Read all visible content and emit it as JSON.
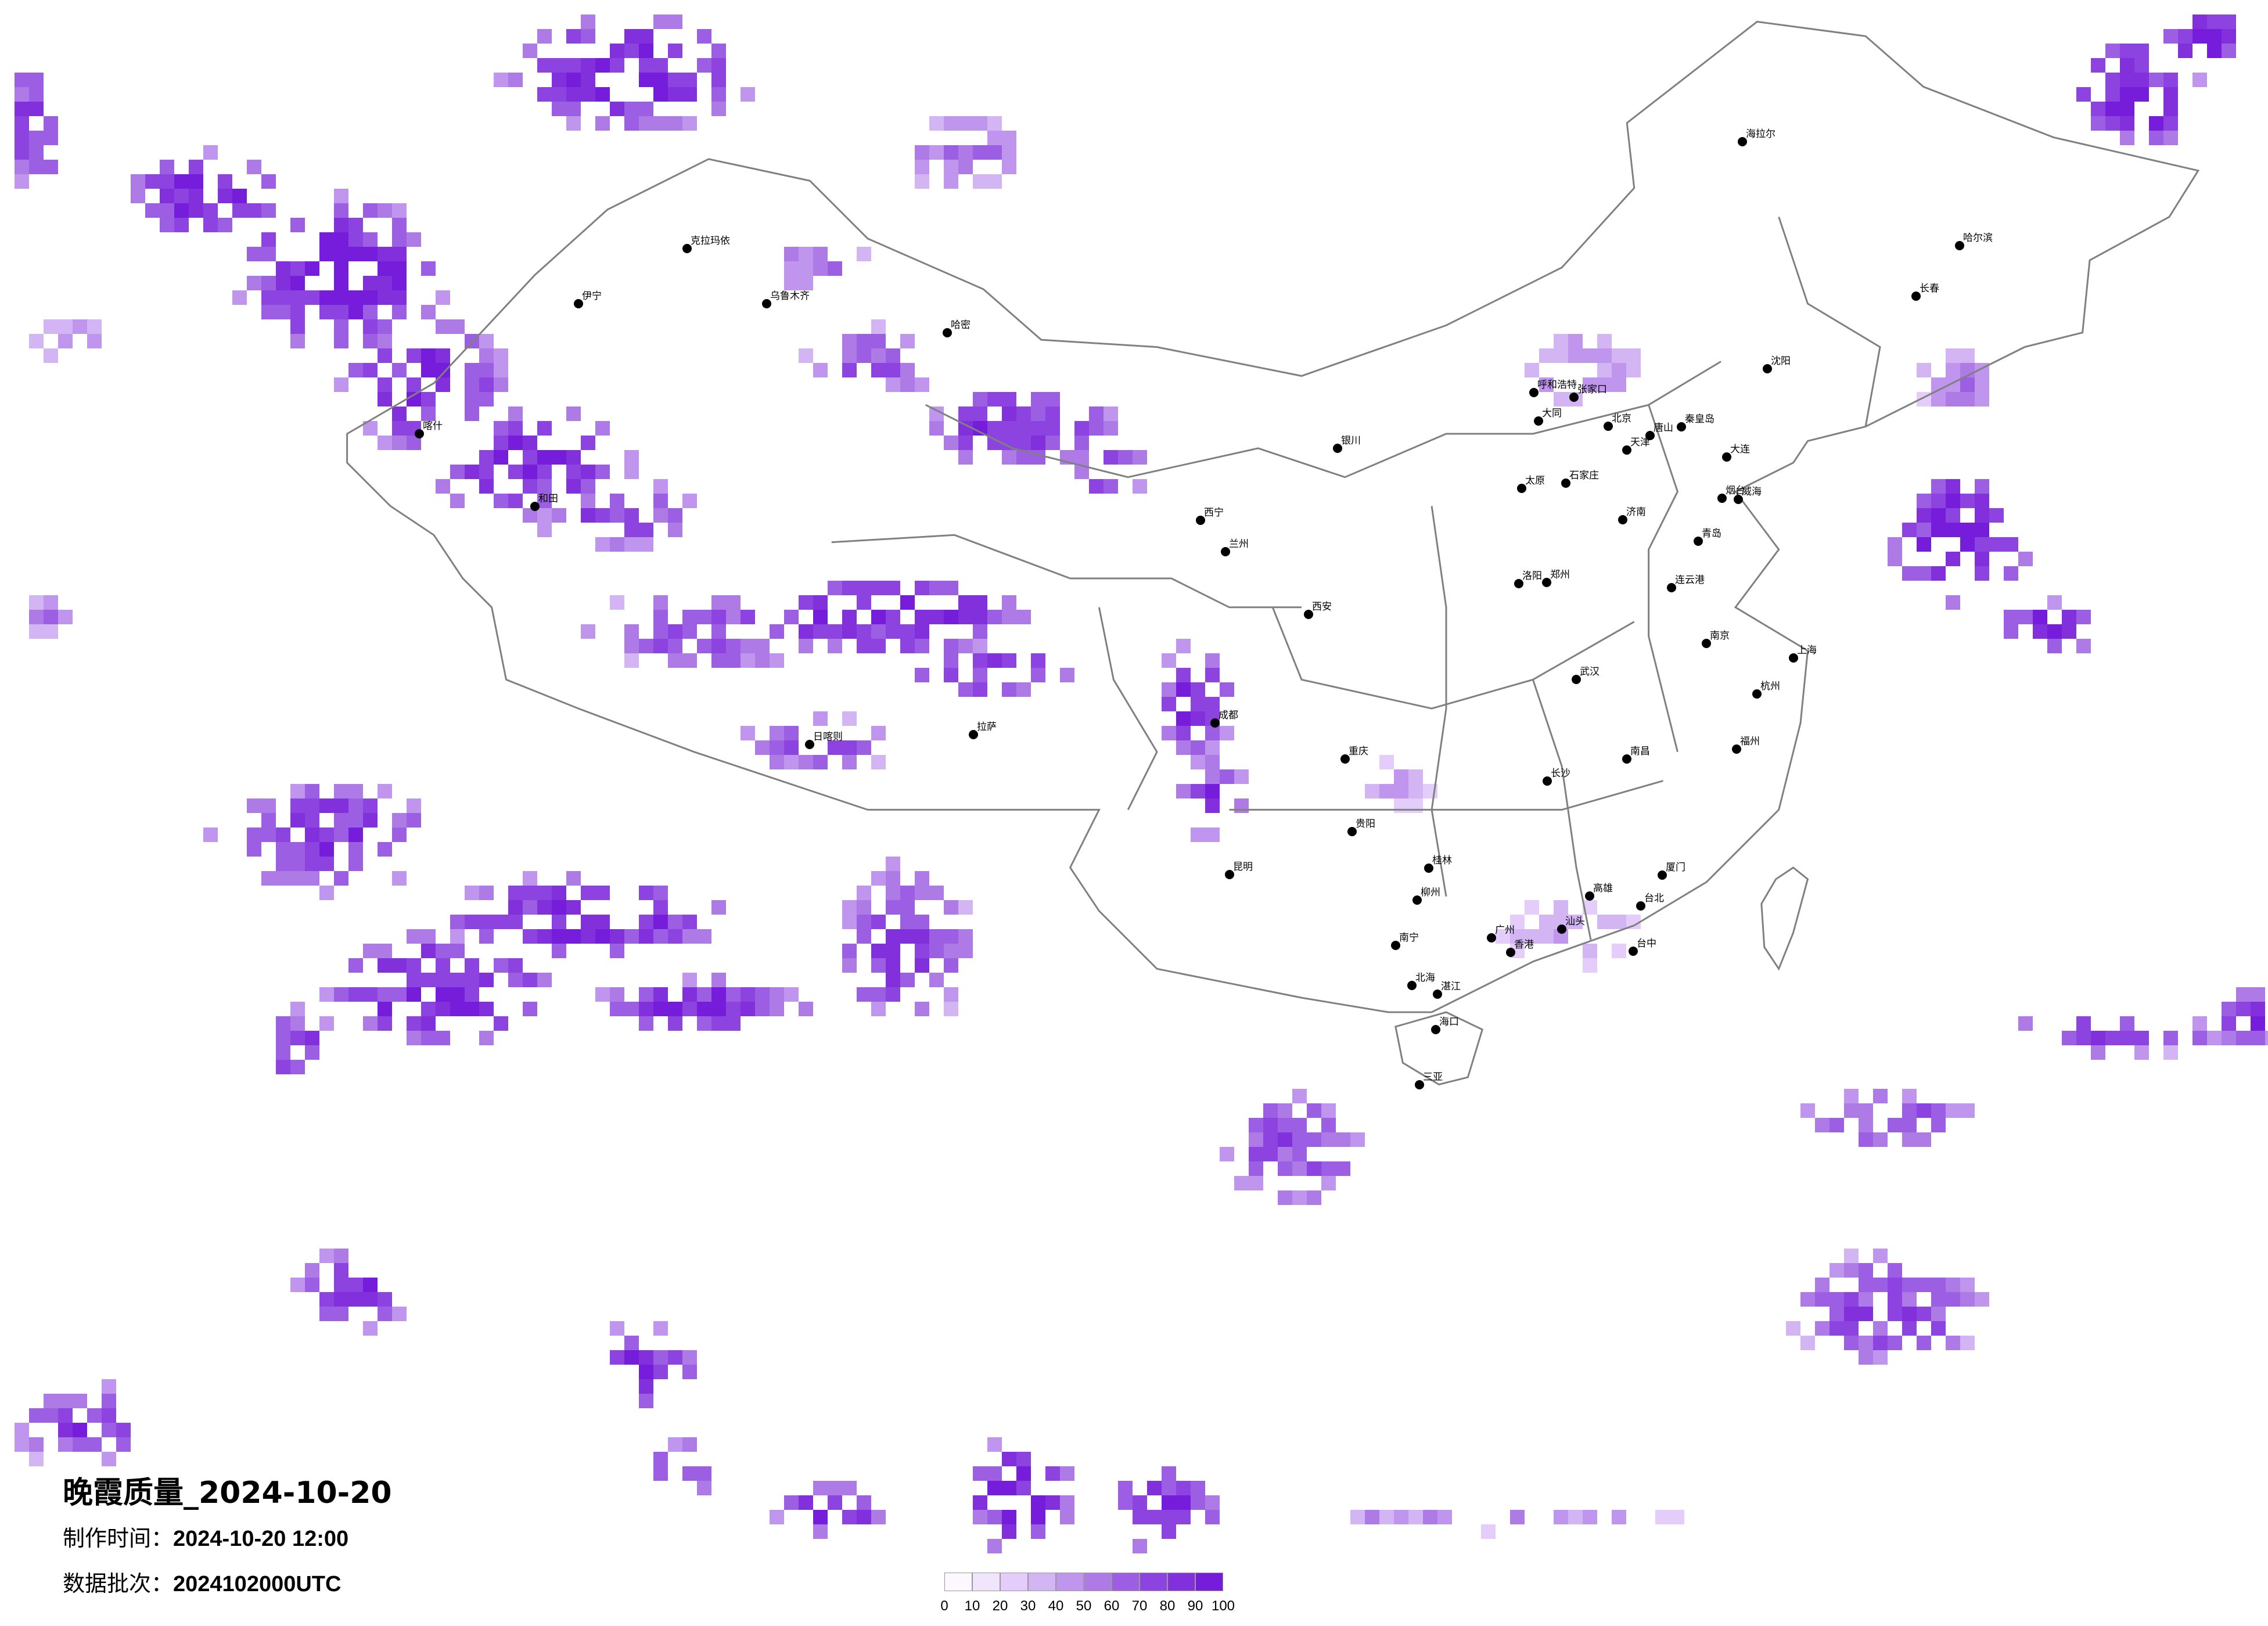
{
  "title": "晚霞质量_2024-10-20",
  "production_time_label": "制作时间：",
  "production_time": "2024-10-20 12:00",
  "data_batch_label": "数据批次：",
  "data_batch": "2024102000UTC",
  "legend": {
    "ticks": [
      "0",
      "10",
      "20",
      "30",
      "40",
      "50",
      "60",
      "70",
      "80",
      "90",
      "100"
    ],
    "colors": [
      "#fdf8ff",
      "#f1e4fd",
      "#e4cdfb",
      "#d3b5f3",
      "#bf95ee",
      "#ae7ae6",
      "#9c5fe4",
      "#8c43df",
      "#8230dc",
      "#761ddb"
    ]
  },
  "cities": [
    "北京",
    "天津",
    "石家庄",
    "太原",
    "呼和浩特",
    "济南",
    "青岛",
    "大连",
    "沈阳",
    "长春",
    "哈尔滨",
    "海拉尔",
    "郑州",
    "西安",
    "银川",
    "西宁",
    "兰州",
    "乌鲁木齐",
    "克拉玛依",
    "伊宁",
    "喀什",
    "和田",
    "哈密",
    "拉萨",
    "日喀则",
    "成都",
    "重庆",
    "贵阳",
    "昆明",
    "南宁",
    "广州",
    "香港",
    "海口",
    "三亚",
    "厦门",
    "台北",
    "台中",
    "高雄",
    "武汉",
    "长沙",
    "南昌",
    "南京",
    "上海",
    "杭州",
    "福州",
    "张家口",
    "大同",
    "唐山",
    "秦皇岛",
    "烟台",
    "威海",
    "连云港",
    "洛阳",
    "汕头",
    "湛江",
    "北海",
    "柳州",
    "桂林"
  ]
}
